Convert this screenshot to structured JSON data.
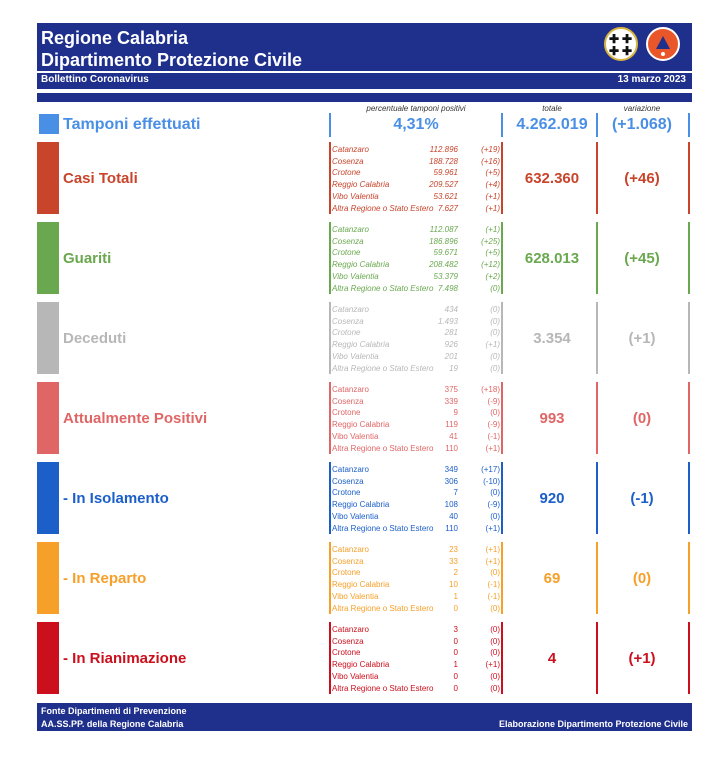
{
  "header": {
    "title_line1": "Regione Calabria",
    "title_line2": "Dipartimento Protezione Civile",
    "subtitle": "Bollettino Coronavirus",
    "date": "13 marzo 2023"
  },
  "logos": {
    "left": "regione-calabria-logo",
    "right": "protezione-civile-logo"
  },
  "columns": {
    "positivity": "percentuale tamponi positivi",
    "total": "totale",
    "variation": "variazione"
  },
  "tamponi": {
    "label": "Tamponi effettuati",
    "percent": "4,31%",
    "total": "4.262.019",
    "variation": "(+1.068)",
    "color": "#4a8fe6"
  },
  "sections": [
    {
      "key": "casi-totali",
      "label": "Casi Totali",
      "total": "632.360",
      "variation": "(+46)",
      "color": "#c8442b",
      "italic": true,
      "rows": [
        {
          "name": "Catanzaro",
          "value": "112.896",
          "delta": "(+19)"
        },
        {
          "name": "Cosenza",
          "value": "188.728",
          "delta": "(+16)"
        },
        {
          "name": "Crotone",
          "value": "59.961",
          "delta": "(+5)"
        },
        {
          "name": "Reggio Calabria",
          "value": "209.527",
          "delta": "(+4)"
        },
        {
          "name": "Vibo Valentia",
          "value": "53.621",
          "delta": "(+1)"
        },
        {
          "name": "Altra Regione o Stato Estero",
          "value": "7.627",
          "delta": "(+1)"
        }
      ]
    },
    {
      "key": "guariti",
      "label": "Guariti",
      "total": "628.013",
      "variation": "(+45)",
      "color": "#6aa84f",
      "italic": true,
      "rows": [
        {
          "name": "Catanzaro",
          "value": "112.087",
          "delta": "(+1)"
        },
        {
          "name": "Cosenza",
          "value": "186.896",
          "delta": "(+25)"
        },
        {
          "name": "Crotone",
          "value": "59.671",
          "delta": "(+5)"
        },
        {
          "name": "Reggio Calabria",
          "value": "208.482",
          "delta": "(+12)"
        },
        {
          "name": "Vibo Valentia",
          "value": "53.379",
          "delta": "(+2)"
        },
        {
          "name": "Altra Regione o Stato Estero",
          "value": "7.498",
          "delta": "(0)"
        }
      ]
    },
    {
      "key": "deceduti",
      "label": "Deceduti",
      "total": "3.354",
      "variation": "(+1)",
      "color": "#b7b7b7",
      "italic": true,
      "rows": [
        {
          "name": "Catanzaro",
          "value": "434",
          "delta": "(0)"
        },
        {
          "name": "Cosenza",
          "value": "1.493",
          "delta": "(0)"
        },
        {
          "name": "Crotone",
          "value": "281",
          "delta": "(0)"
        },
        {
          "name": "Reggio Calabria",
          "value": "926",
          "delta": "(+1)"
        },
        {
          "name": "Vibo Valentia",
          "value": "201",
          "delta": "(0)"
        },
        {
          "name": "Altra Regione o Stato Estero",
          "value": "19",
          "delta": "(0)"
        }
      ]
    },
    {
      "key": "attualmente-positivi",
      "label": "Attualmente Positivi",
      "total": "993",
      "variation": "(0)",
      "color": "#e06666",
      "italic": false,
      "rows": [
        {
          "name": "Catanzaro",
          "value": "375",
          "delta": "(+18)"
        },
        {
          "name": "Cosenza",
          "value": "339",
          "delta": "(-9)"
        },
        {
          "name": "Crotone",
          "value": "9",
          "delta": "(0)"
        },
        {
          "name": "Reggio Calabria",
          "value": "119",
          "delta": "(-9)"
        },
        {
          "name": "Vibo Valentia",
          "value": "41",
          "delta": "(-1)"
        },
        {
          "name": "Altra Regione o Stato Estero",
          "value": "110",
          "delta": "(+1)"
        }
      ]
    },
    {
      "key": "isolamento",
      "label": " - In Isolamento",
      "total": "920",
      "variation": "(-1)",
      "color": "#1c5fc9",
      "italic": false,
      "rows": [
        {
          "name": "Catanzaro",
          "value": "349",
          "delta": "(+17)"
        },
        {
          "name": "Cosenza",
          "value": "306",
          "delta": "(-10)"
        },
        {
          "name": "Crotone",
          "value": "7",
          "delta": "(0)"
        },
        {
          "name": "Reggio Calabria",
          "value": "108",
          "delta": "(-9)"
        },
        {
          "name": "Vibo Valentia",
          "value": "40",
          "delta": "(0)"
        },
        {
          "name": "Altra Regione o Stato Estero",
          "value": "110",
          "delta": "(+1)"
        }
      ]
    },
    {
      "key": "reparto",
      "label": " - In Reparto",
      "total": "69",
      "variation": "(0)",
      "color": "#f6a02a",
      "italic": false,
      "rows": [
        {
          "name": "Catanzaro",
          "value": "23",
          "delta": "(+1)"
        },
        {
          "name": "Cosenza",
          "value": "33",
          "delta": "(+1)"
        },
        {
          "name": "Crotone",
          "value": "2",
          "delta": "(0)"
        },
        {
          "name": "Reggio Calabria",
          "value": "10",
          "delta": "(-1)"
        },
        {
          "name": "Vibo Valentia",
          "value": "1",
          "delta": "(-1)"
        },
        {
          "name": "Altra Regione o Stato Estero",
          "value": "0",
          "delta": "(0)"
        }
      ]
    },
    {
      "key": "rianimazione",
      "label": " - In Rianimazione",
      "total": "4",
      "variation": "(+1)",
      "color": "#cc0f1c",
      "italic": false,
      "rows": [
        {
          "name": "Catanzaro",
          "value": "3",
          "delta": "(0)"
        },
        {
          "name": "Cosenza",
          "value": "0",
          "delta": "(0)"
        },
        {
          "name": "Crotone",
          "value": "0",
          "delta": "(0)"
        },
        {
          "name": "Reggio Calabria",
          "value": "1",
          "delta": "(+1)"
        },
        {
          "name": "Vibo Valentia",
          "value": "0",
          "delta": "(0)"
        },
        {
          "name": "Altra Regione o Stato Estero",
          "value": "0",
          "delta": "(0)"
        }
      ]
    }
  ],
  "footer": {
    "source_line1": "Fonte Dipartimenti di Prevenzione",
    "source_line2": "AA.SS.PP.  della Regione Calabria",
    "credit": "Elaborazione Dipartimento Protezione Civile"
  }
}
